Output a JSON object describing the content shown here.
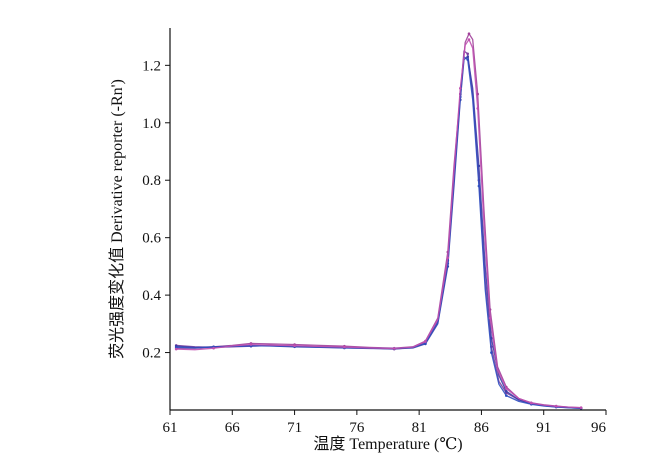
{
  "chart_data": {
    "type": "line",
    "title": "",
    "xlabel": "温度 Temperature (℃)",
    "ylabel": "荧光强度变化值 Derivative reporter (-Rn')",
    "xlim": [
      61,
      96
    ],
    "ylim": [
      0,
      1.33
    ],
    "xticks": [
      61,
      66,
      71,
      76,
      81,
      86,
      91,
      96
    ],
    "xtick_labels": [
      "61",
      "66",
      "71",
      "76",
      "81",
      "86",
      "91",
      "96"
    ],
    "yticks": [
      0.2,
      0.4,
      0.6,
      0.8,
      1.0,
      1.2
    ],
    "ytick_labels": [
      "0.2",
      "0.4",
      "0.6",
      "0.8",
      "1.0",
      "1.2"
    ],
    "grid": false,
    "legend": "none",
    "series": [
      {
        "color": "#a0409a",
        "points": [
          [
            61.5,
            0.215
          ],
          [
            63,
            0.215
          ],
          [
            64.5,
            0.22
          ],
          [
            66,
            0.225
          ],
          [
            67.5,
            0.232
          ],
          [
            69,
            0.23
          ],
          [
            71,
            0.228
          ],
          [
            73,
            0.225
          ],
          [
            75,
            0.222
          ],
          [
            77,
            0.218
          ],
          [
            79,
            0.215
          ],
          [
            80.5,
            0.22
          ],
          [
            81.5,
            0.24
          ],
          [
            82.5,
            0.32
          ],
          [
            83.3,
            0.55
          ],
          [
            83.8,
            0.85
          ],
          [
            84.3,
            1.1
          ],
          [
            84.7,
            1.28
          ],
          [
            85.0,
            1.31
          ],
          [
            85.3,
            1.29
          ],
          [
            85.7,
            1.1
          ],
          [
            86.2,
            0.7
          ],
          [
            86.7,
            0.35
          ],
          [
            87.3,
            0.15
          ],
          [
            88,
            0.08
          ],
          [
            89,
            0.04
          ],
          [
            90,
            0.025
          ],
          [
            91,
            0.018
          ],
          [
            92,
            0.014
          ],
          [
            93,
            0.01
          ],
          [
            94,
            0.008
          ]
        ]
      },
      {
        "color": "#7a3fa0",
        "points": [
          [
            61.5,
            0.225
          ],
          [
            63,
            0.22
          ],
          [
            64.5,
            0.218
          ],
          [
            66,
            0.22
          ],
          [
            67.5,
            0.222
          ],
          [
            69,
            0.225
          ],
          [
            71,
            0.222
          ],
          [
            73,
            0.22
          ],
          [
            75,
            0.218
          ],
          [
            77,
            0.215
          ],
          [
            79,
            0.212
          ],
          [
            80.5,
            0.218
          ],
          [
            81.5,
            0.235
          ],
          [
            82.5,
            0.31
          ],
          [
            83.3,
            0.52
          ],
          [
            83.8,
            0.8
          ],
          [
            84.3,
            1.1
          ],
          [
            84.6,
            1.25
          ],
          [
            84.9,
            1.24
          ],
          [
            85.3,
            1.1
          ],
          [
            85.8,
            0.8
          ],
          [
            86.3,
            0.45
          ],
          [
            86.8,
            0.22
          ],
          [
            87.4,
            0.1
          ],
          [
            88,
            0.06
          ],
          [
            89,
            0.035
          ],
          [
            90,
            0.022
          ],
          [
            91,
            0.016
          ],
          [
            92,
            0.012
          ],
          [
            93,
            0.009
          ],
          [
            94,
            0.007
          ]
        ]
      },
      {
        "color": "#3a3fa8",
        "points": [
          [
            61.5,
            0.222
          ],
          [
            63,
            0.218
          ],
          [
            64.5,
            0.22
          ],
          [
            66,
            0.222
          ],
          [
            67.5,
            0.224
          ],
          [
            69,
            0.223
          ],
          [
            71,
            0.22
          ],
          [
            73,
            0.218
          ],
          [
            75,
            0.216
          ],
          [
            77,
            0.214
          ],
          [
            79,
            0.213
          ],
          [
            80.5,
            0.216
          ],
          [
            81.5,
            0.23
          ],
          [
            82.5,
            0.3
          ],
          [
            83.3,
            0.5
          ],
          [
            83.8,
            0.78
          ],
          [
            84.3,
            1.08
          ],
          [
            84.6,
            1.22
          ],
          [
            84.9,
            1.23
          ],
          [
            85.3,
            1.12
          ],
          [
            85.8,
            0.85
          ],
          [
            86.3,
            0.5
          ],
          [
            86.8,
            0.25
          ],
          [
            87.4,
            0.12
          ],
          [
            88,
            0.065
          ],
          [
            89,
            0.035
          ],
          [
            90,
            0.022
          ],
          [
            91,
            0.015
          ],
          [
            92,
            0.011
          ],
          [
            93,
            0.008
          ],
          [
            94,
            0.006
          ]
        ]
      },
      {
        "color": "#2f4fc0",
        "points": [
          [
            61.5,
            0.218
          ],
          [
            63,
            0.216
          ],
          [
            64.5,
            0.219
          ],
          [
            66,
            0.221
          ],
          [
            67.5,
            0.223
          ],
          [
            69,
            0.224
          ],
          [
            71,
            0.221
          ],
          [
            73,
            0.219
          ],
          [
            75,
            0.217
          ],
          [
            77,
            0.215
          ],
          [
            79,
            0.214
          ],
          [
            80.5,
            0.218
          ],
          [
            81.5,
            0.232
          ],
          [
            82.5,
            0.305
          ],
          [
            83.3,
            0.51
          ],
          [
            83.8,
            0.8
          ],
          [
            84.3,
            1.09
          ],
          [
            84.6,
            1.23
          ],
          [
            84.9,
            1.22
          ],
          [
            85.3,
            1.08
          ],
          [
            85.8,
            0.78
          ],
          [
            86.3,
            0.42
          ],
          [
            86.8,
            0.2
          ],
          [
            87.4,
            0.09
          ],
          [
            88,
            0.05
          ],
          [
            89,
            0.03
          ],
          [
            90,
            0.02
          ],
          [
            91,
            0.014
          ],
          [
            92,
            0.01
          ],
          [
            93,
            0.008
          ],
          [
            94,
            0.006
          ]
        ]
      },
      {
        "color": "#c050b0",
        "points": [
          [
            61.5,
            0.212
          ],
          [
            63,
            0.21
          ],
          [
            64.5,
            0.215
          ],
          [
            66,
            0.223
          ],
          [
            67.5,
            0.228
          ],
          [
            69,
            0.226
          ],
          [
            71,
            0.224
          ],
          [
            73,
            0.221
          ],
          [
            75,
            0.219
          ],
          [
            77,
            0.216
          ],
          [
            79,
            0.214
          ],
          [
            80.5,
            0.219
          ],
          [
            81.5,
            0.238
          ],
          [
            82.5,
            0.315
          ],
          [
            83.3,
            0.53
          ],
          [
            83.8,
            0.83
          ],
          [
            84.3,
            1.12
          ],
          [
            84.7,
            1.27
          ],
          [
            85.0,
            1.29
          ],
          [
            85.3,
            1.26
          ],
          [
            85.7,
            1.05
          ],
          [
            86.2,
            0.65
          ],
          [
            86.7,
            0.32
          ],
          [
            87.3,
            0.14
          ],
          [
            88,
            0.075
          ],
          [
            89,
            0.04
          ],
          [
            90,
            0.024
          ],
          [
            91,
            0.017
          ],
          [
            92,
            0.013
          ],
          [
            93,
            0.01
          ],
          [
            94,
            0.008
          ]
        ]
      }
    ]
  }
}
